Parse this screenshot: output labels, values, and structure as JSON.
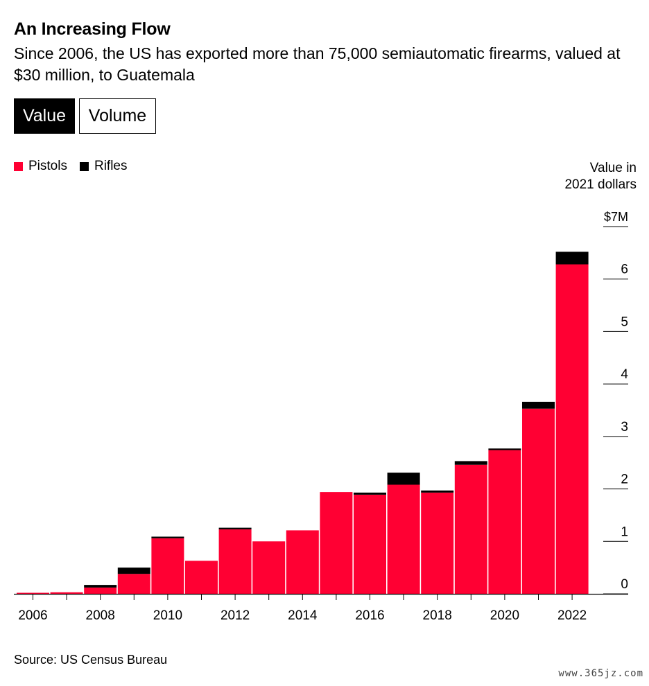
{
  "header": {
    "title": "An Increasing Flow",
    "subtitle": "Since 2006, the US has exported more than 75,000 semiautomatic firearms, valued at $30 million, to Guatemala"
  },
  "toggle": {
    "active_label": "Value",
    "inactive_label": "Volume"
  },
  "colors": {
    "pistols": "#ff0033",
    "rifles": "#000000"
  },
  "unit_label_line1": "Value in",
  "unit_label_line2": "2021 dollars",
  "source": "Source: US Census Bureau",
  "watermark": "www.365jz.com",
  "chart_data": {
    "type": "bar",
    "stacked": true,
    "x": [
      2006,
      2007,
      2008,
      2009,
      2010,
      2011,
      2012,
      2013,
      2014,
      2015,
      2016,
      2017,
      2018,
      2019,
      2020,
      2021,
      2022
    ],
    "x_tick_labels": [
      "2006",
      "2008",
      "2010",
      "2012",
      "2014",
      "2016",
      "2018",
      "2020",
      "2022"
    ],
    "series": [
      {
        "name": "Pistols",
        "color": "#ff0033",
        "values": [
          0.02,
          0.03,
          0.12,
          0.38,
          1.06,
          0.63,
          1.23,
          1.0,
          1.21,
          1.94,
          1.89,
          2.08,
          1.93,
          2.46,
          2.74,
          3.53,
          6.28
        ]
      },
      {
        "name": "Rifles",
        "color": "#000000",
        "values": [
          0.0,
          0.0,
          0.05,
          0.12,
          0.03,
          0.0,
          0.03,
          0.0,
          0.0,
          0.0,
          0.04,
          0.23,
          0.04,
          0.07,
          0.03,
          0.13,
          0.24
        ]
      }
    ],
    "y_ticks": [
      0,
      1,
      2,
      3,
      4,
      5,
      6,
      7
    ],
    "y_tick_labels": [
      "0",
      "1",
      "2",
      "3",
      "4",
      "5",
      "6",
      "$7M"
    ],
    "ylim": [
      0,
      7
    ],
    "ylabel": "Value in 2021 dollars",
    "legend_position": "top-left"
  }
}
